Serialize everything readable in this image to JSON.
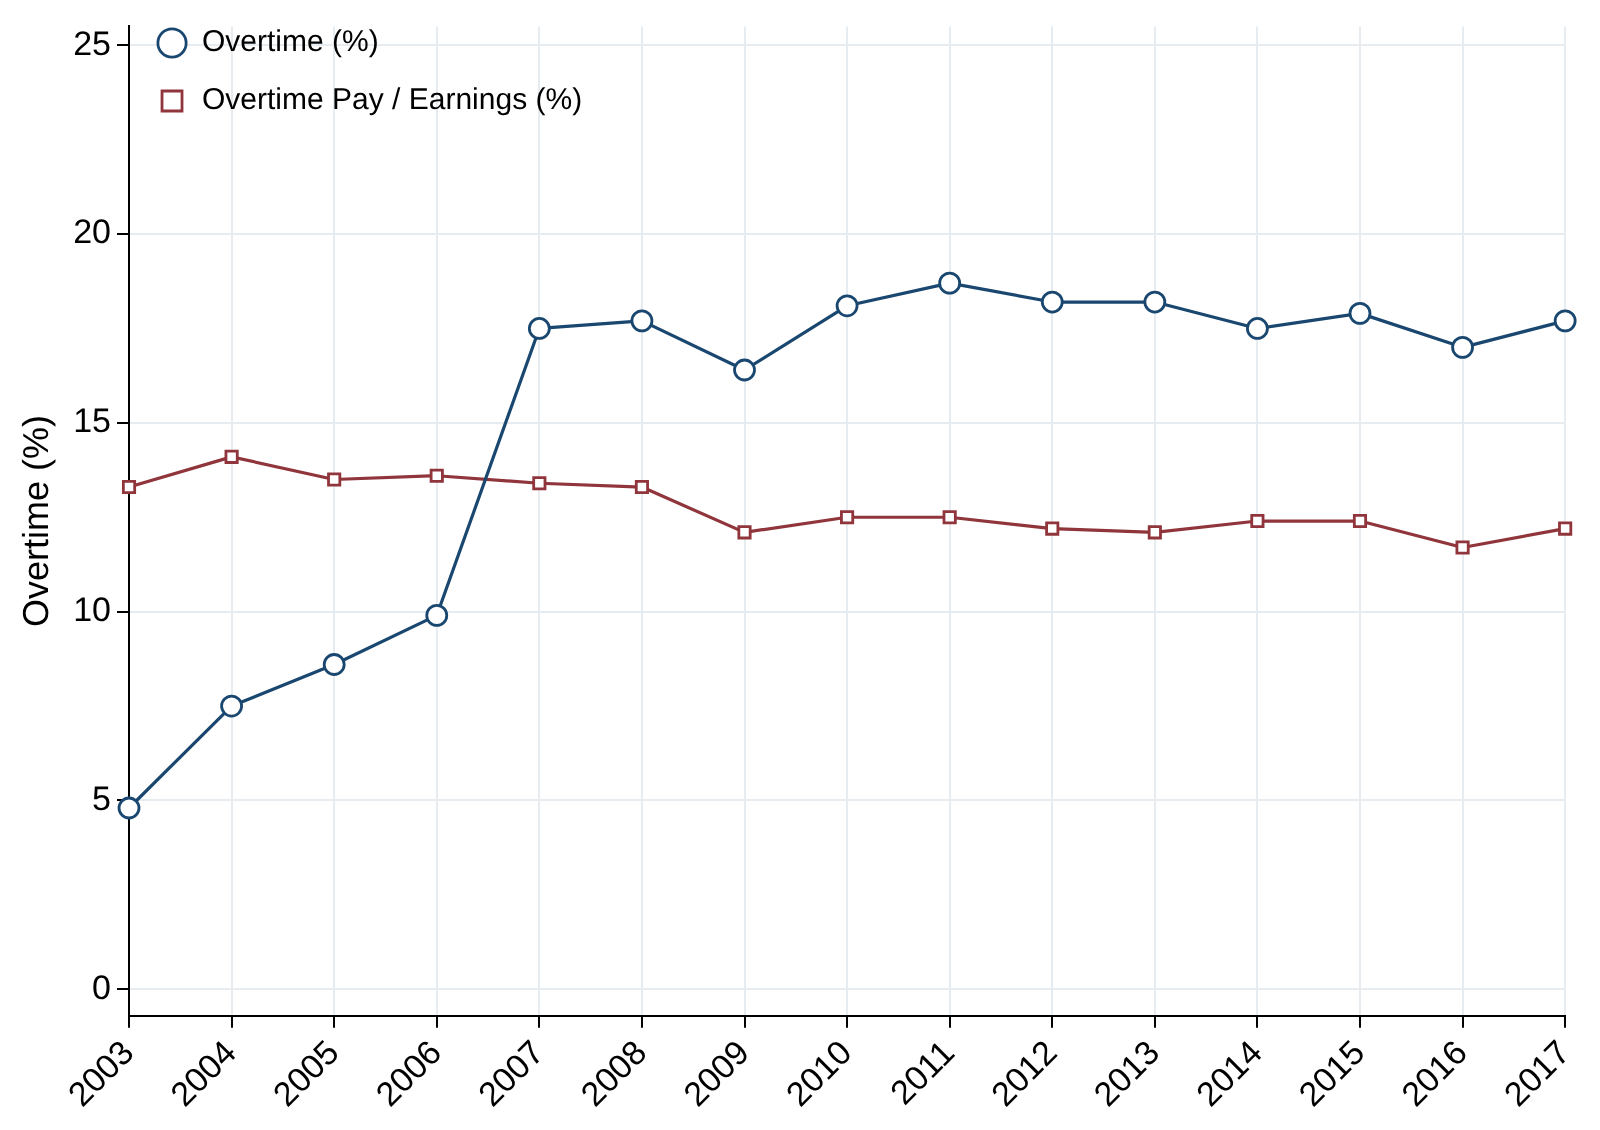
{
  "chart_data": {
    "type": "line",
    "ylabel": "Overtime (%)",
    "categories": [
      "2003",
      "2004",
      "2005",
      "2006",
      "2007",
      "2008",
      "2009",
      "2010",
      "2011",
      "2012",
      "2013",
      "2014",
      "2015",
      "2016",
      "2017"
    ],
    "series": [
      {
        "name": "Overtime (%)",
        "color": "#1a476f",
        "marker": "circle",
        "values": [
          4.8,
          7.5,
          8.6,
          9.9,
          17.5,
          17.7,
          16.4,
          18.1,
          18.7,
          18.2,
          18.2,
          17.5,
          17.9,
          17.0,
          17.7
        ]
      },
      {
        "name": "Overtime Pay / Earnings (%)",
        "color": "#90353b",
        "marker": "square",
        "values": [
          13.3,
          14.1,
          13.5,
          13.6,
          13.4,
          13.3,
          12.1,
          12.5,
          12.5,
          12.2,
          12.1,
          12.4,
          12.4,
          11.7,
          12.2
        ]
      }
    ],
    "ylim": [
      -0.7,
      25.5
    ],
    "yticks": [
      0,
      5,
      10,
      15,
      20,
      25
    ],
    "grid": true,
    "legend": "top left",
    "line_style": "solid"
  }
}
